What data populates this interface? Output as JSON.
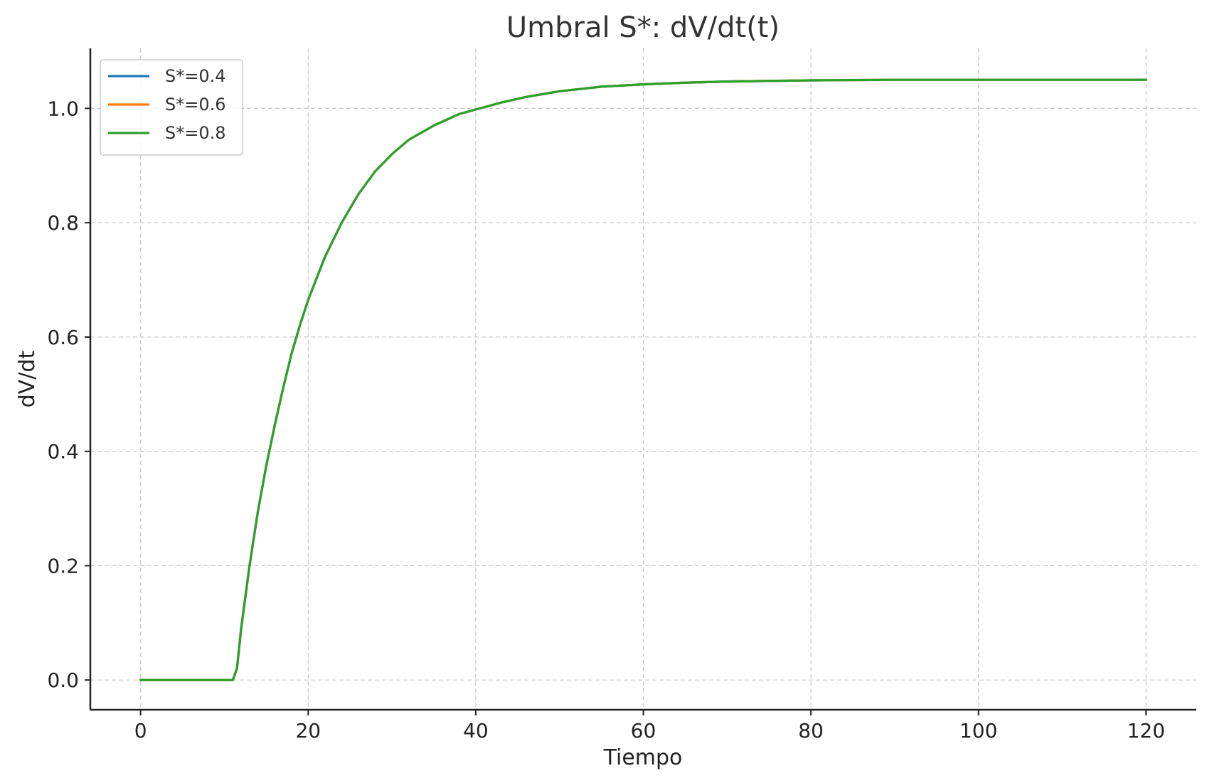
{
  "chart_data": {
    "type": "line",
    "title": "Umbral S*: dV/dt(t)",
    "xlabel": "Tiempo",
    "ylabel": "dV/dt",
    "xlim": [
      -6,
      126
    ],
    "ylim": [
      -0.052,
      1.105
    ],
    "xticks": [
      0,
      20,
      40,
      60,
      80,
      100,
      120
    ],
    "yticks": [
      0.0,
      0.2,
      0.4,
      0.6,
      0.8,
      1.0
    ],
    "xtick_labels": [
      "0",
      "20",
      "40",
      "60",
      "80",
      "100",
      "120"
    ],
    "ytick_labels": [
      "0.0",
      "0.2",
      "0.4",
      "0.6",
      "0.8",
      "1.0"
    ],
    "grid": true,
    "legend_position": "top-left",
    "x": [
      0,
      5,
      10,
      11,
      11.5,
      12,
      13,
      14,
      15,
      16,
      17,
      18,
      19,
      20,
      22,
      24,
      26,
      28,
      30,
      32,
      35,
      38,
      40,
      43,
      46,
      50,
      55,
      60,
      65,
      70,
      80,
      90,
      100,
      110,
      120
    ],
    "series": [
      {
        "name": "S*=0.4",
        "color": "#1f77b4",
        "values": [
          0,
          0,
          0,
          0,
          0.02,
          0.09,
          0.2,
          0.295,
          0.375,
          0.445,
          0.51,
          0.57,
          0.62,
          0.665,
          0.74,
          0.8,
          0.85,
          0.89,
          0.92,
          0.945,
          0.97,
          0.99,
          0.998,
          1.01,
          1.02,
          1.03,
          1.038,
          1.042,
          1.045,
          1.047,
          1.049,
          1.05,
          1.05,
          1.05,
          1.05
        ]
      },
      {
        "name": "S*=0.6",
        "color": "#ff7f0e",
        "values": [
          0,
          0,
          0,
          0,
          0.02,
          0.09,
          0.2,
          0.295,
          0.375,
          0.445,
          0.51,
          0.57,
          0.62,
          0.665,
          0.74,
          0.8,
          0.85,
          0.89,
          0.92,
          0.945,
          0.97,
          0.99,
          0.998,
          1.01,
          1.02,
          1.03,
          1.038,
          1.042,
          1.045,
          1.047,
          1.049,
          1.05,
          1.05,
          1.05,
          1.05
        ]
      },
      {
        "name": "S*=0.8",
        "color": "#2ca02c",
        "values": [
          0,
          0,
          0,
          0,
          0.02,
          0.09,
          0.2,
          0.295,
          0.375,
          0.445,
          0.51,
          0.57,
          0.62,
          0.665,
          0.74,
          0.8,
          0.85,
          0.89,
          0.92,
          0.945,
          0.97,
          0.99,
          0.998,
          1.01,
          1.02,
          1.03,
          1.038,
          1.042,
          1.045,
          1.047,
          1.049,
          1.05,
          1.05,
          1.05,
          1.05
        ]
      }
    ]
  }
}
